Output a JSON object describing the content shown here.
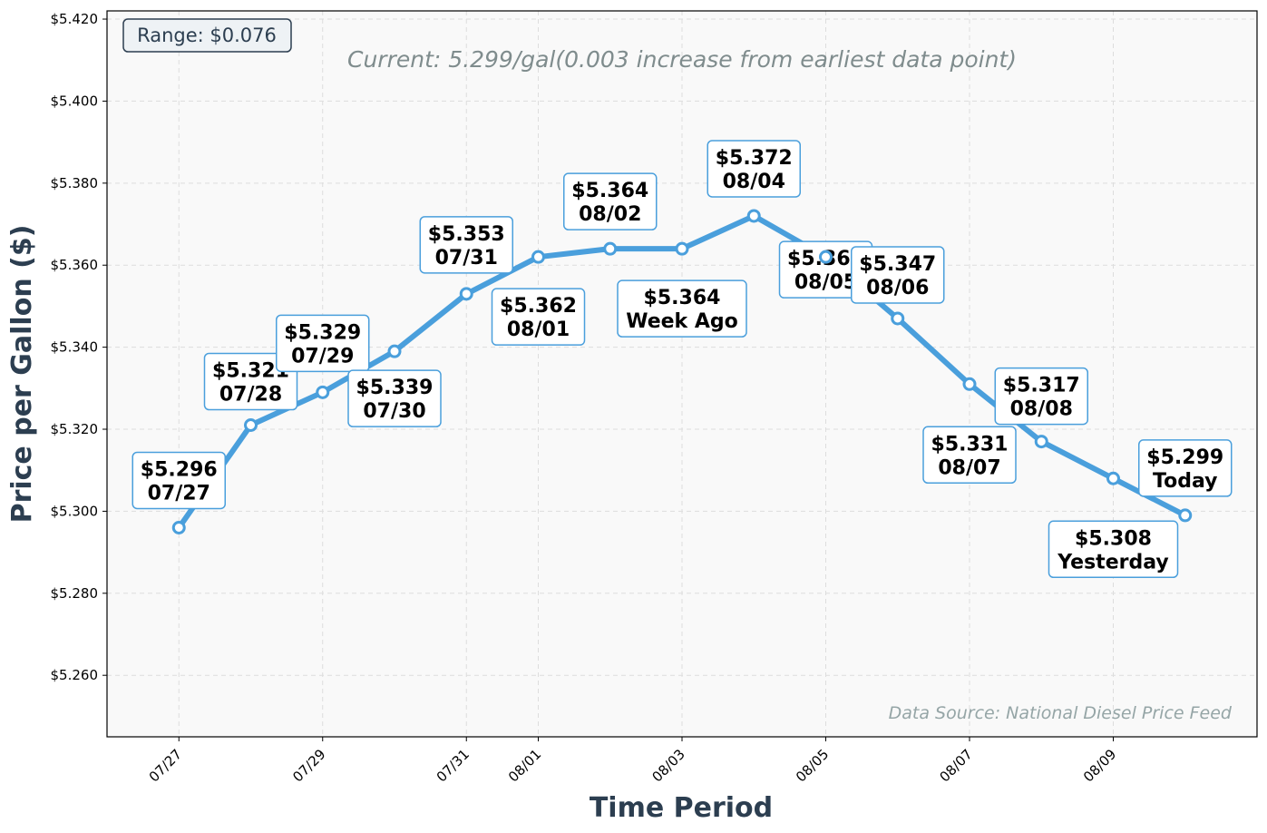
{
  "chart_data": {
    "type": "line",
    "xlabel": "Time Period",
    "ylabel": "Price per Gallon ($)",
    "ylim": [
      5.245,
      5.422
    ],
    "x_tick_labels": [
      "07/27",
      "07/29",
      "07/31",
      "08/01",
      "08/03",
      "08/05",
      "08/07",
      "08/09"
    ],
    "x_tick_dates": [
      "2025-07-27",
      "2025-07-29",
      "2025-07-31",
      "2025-08-01",
      "2025-08-03",
      "2025-08-05",
      "2025-08-07",
      "2025-08-09"
    ],
    "x_range": [
      "2025-07-26",
      "2025-08-11"
    ],
    "y_ticks": [
      5.26,
      5.28,
      5.3,
      5.32,
      5.34,
      5.36,
      5.38,
      5.4,
      5.42
    ],
    "y_tick_labels": [
      "$5.260",
      "$5.280",
      "$5.300",
      "$5.320",
      "$5.340",
      "$5.360",
      "$5.380",
      "$5.400",
      "$5.420"
    ],
    "grid": true,
    "series": [
      {
        "color": "#4a9fdc",
        "points": [
          {
            "x": "2025-07-27",
            "y": 5.296,
            "label": "$5.296",
            "sublabel": "07/27"
          },
          {
            "x": "2025-07-28",
            "y": 5.321,
            "label": "$5.321",
            "sublabel": "07/28"
          },
          {
            "x": "2025-07-29",
            "y": 5.329,
            "label": "$5.329",
            "sublabel": "07/29"
          },
          {
            "x": "2025-07-30",
            "y": 5.339,
            "label": "$5.339",
            "sublabel": "07/30"
          },
          {
            "x": "2025-07-31",
            "y": 5.353,
            "label": "$5.353",
            "sublabel": "07/31"
          },
          {
            "x": "2025-08-01",
            "y": 5.362,
            "label": "$5.362",
            "sublabel": "08/01"
          },
          {
            "x": "2025-08-02",
            "y": 5.364,
            "label": "$5.364",
            "sublabel": "08/02"
          },
          {
            "x": "2025-08-03",
            "y": 5.364,
            "label": "$5.364",
            "sublabel": "Week Ago"
          },
          {
            "x": "2025-08-04",
            "y": 5.372,
            "label": "$5.372",
            "sublabel": "08/04"
          },
          {
            "x": "2025-08-05",
            "y": 5.362,
            "label": "$5.362",
            "sublabel": "08/05"
          },
          {
            "x": "2025-08-06",
            "y": 5.347,
            "label": "$5.347",
            "sublabel": "08/06"
          },
          {
            "x": "2025-08-07",
            "y": 5.331,
            "label": "$5.331",
            "sublabel": "08/07"
          },
          {
            "x": "2025-08-08",
            "y": 5.317,
            "label": "$5.317",
            "sublabel": "08/08"
          },
          {
            "x": "2025-08-09",
            "y": 5.308,
            "label": "$5.308",
            "sublabel": "Yesterday"
          },
          {
            "x": "2025-08-10",
            "y": 5.299,
            "label": "$5.299",
            "sublabel": "Today"
          }
        ]
      }
    ],
    "annotations": {
      "range": "Range: $0.076",
      "current": "Current: 5.299/gal(0.003 increase from earliest data point)",
      "source": "Data Source: National Diesel Price Feed"
    }
  }
}
